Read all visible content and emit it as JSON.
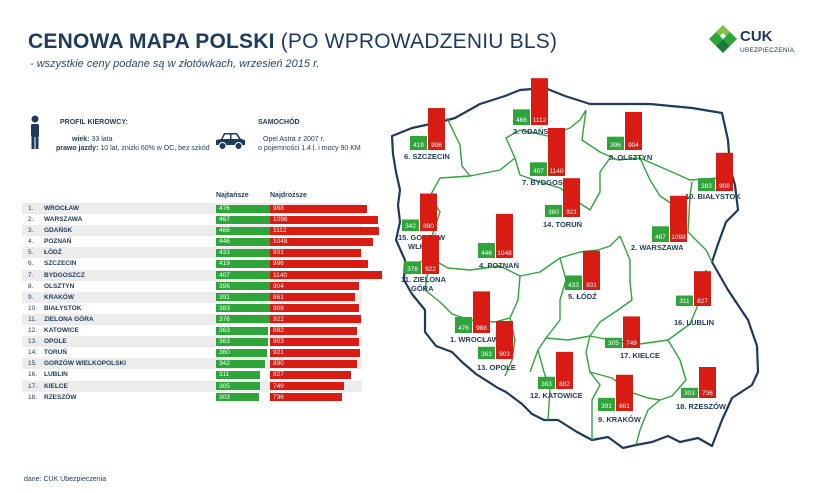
{
  "header": {
    "title_bold": "CENOWA MAPA POLSKI",
    "title_rest": " (PO WPROWADZENIU BLS)",
    "subtitle": "- wszystkie ceny podane są w złotówkach, wrzesień 2015 r."
  },
  "logo": {
    "name": "CUK",
    "sub": "UBEZPIECZENIA",
    "colors": [
      "#7cc243",
      "#2ea43b",
      "#1d7a3a"
    ]
  },
  "profile": {
    "heading": "PROFIL KIEROWCY:",
    "age_label": "wiek:",
    "age_value": " 33 lata",
    "license_label": "prawo jazdy:",
    "license_value": " 10 lat, zniżki 60% w OC, bez szkód"
  },
  "car": {
    "heading": "SAMOCHÓD",
    "line1": "Opel Astra z 2007 r.",
    "line2": "o pojemności 1.4 l. i mocy 90 KM"
  },
  "columns": {
    "cheapest": "Najtańsze",
    "most_expensive": "Najdroższe"
  },
  "colors": {
    "green": "#2ea43b",
    "red": "#d81b13",
    "navy": "#1d3b5c"
  },
  "chart_data": {
    "type": "bar",
    "title": "CENOWA MAPA POLSKI (PO WPROWADZENIU BLS)",
    "series_names": [
      "Najtańsze",
      "Najdroższe"
    ],
    "rows": [
      {
        "rank": "1.",
        "city": "WROCŁAW",
        "min": 476,
        "max": 988
      },
      {
        "rank": "2.",
        "city": "WARSZAWA",
        "min": 467,
        "max": 1098
      },
      {
        "rank": "3.",
        "city": "GDAŃSK",
        "min": 466,
        "max": 1112
      },
      {
        "rank": "4.",
        "city": "POZNAŃ",
        "min": 446,
        "max": 1048
      },
      {
        "rank": "5.",
        "city": "ŁÓDŹ",
        "min": 433,
        "max": 931
      },
      {
        "rank": "6.",
        "city": "SZCZECIN",
        "min": 419,
        "max": 996
      },
      {
        "rank": "7.",
        "city": "BYDGOSZCZ",
        "min": 407,
        "max": 1140
      },
      {
        "rank": "8.",
        "city": "OLSZTYN",
        "min": 396,
        "max": 904
      },
      {
        "rank": "9.",
        "city": "KRAKÓW",
        "min": 391,
        "max": 861
      },
      {
        "rank": "10.",
        "city": "BIAŁYSTOK",
        "min": 383,
        "max": 908
      },
      {
        "rank": "11.",
        "city": "ZIELONA GÓRA",
        "min": 376,
        "max": 922
      },
      {
        "rank": "12.",
        "city": "KATOWICE",
        "min": 363,
        "max": 882
      },
      {
        "rank": "13.",
        "city": "OPOLE",
        "min": 363,
        "max": 903
      },
      {
        "rank": "14.",
        "city": "TORUŃ",
        "min": 360,
        "max": 921
      },
      {
        "rank": "15.",
        "city": "GORZÓW WIELKOPOLSKI",
        "min": 342,
        "max": 890
      },
      {
        "rank": "16.",
        "city": "LUBLIN",
        "min": 311,
        "max": 827
      },
      {
        "rank": "17.",
        "city": "KIELCE",
        "min": 305,
        "max": 749
      },
      {
        "rank": "18.",
        "city": "RZESZÓW",
        "min": 303,
        "max": 736
      }
    ],
    "map_labels": [
      {
        "text": "3. GDAŃSK",
        "min": 466,
        "max": 1112
      },
      {
        "text": "6. SZCZECIN",
        "min": 419,
        "max": 996
      },
      {
        "text": "8. OLSZTYN",
        "min": 396,
        "max": 904
      },
      {
        "text": "7. BYDGOSZCZ",
        "min": 407,
        "max": 1140
      },
      {
        "text": "10. BIAŁYSTOK",
        "min": 383,
        "max": 908
      },
      {
        "text": "15. GORZÓW",
        "text2": "WLKP",
        "min": 342,
        "max": 890
      },
      {
        "text": "14. TORUŃ",
        "min": 360,
        "max": 921
      },
      {
        "text": "2. WARSZAWA",
        "min": 467,
        "max": 1098
      },
      {
        "text": "4. POZNAŃ",
        "min": 446,
        "max": 1048
      },
      {
        "text": "11. ZIELONA",
        "text2": "GÓRA",
        "min": 376,
        "max": 922
      },
      {
        "text": "5. ŁÓDŹ",
        "min": 433,
        "max": 931
      },
      {
        "text": "16. LUBLIN",
        "min": 311,
        "max": 827
      },
      {
        "text": "1. WROCŁAW",
        "min": 476,
        "max": 988
      },
      {
        "text": "13. OPOLE",
        "min": 363,
        "max": 903
      },
      {
        "text": "17. KIELCE",
        "min": 305,
        "max": 749
      },
      {
        "text": "12. KATOWICE",
        "min": 363,
        "max": 882
      },
      {
        "text": "18. RZESZÓW",
        "min": 303,
        "max": 736
      },
      {
        "text": "9. KRAKÓW",
        "min": 391,
        "max": 861
      }
    ]
  },
  "source": "dane: CUK Ubezpieczenia"
}
